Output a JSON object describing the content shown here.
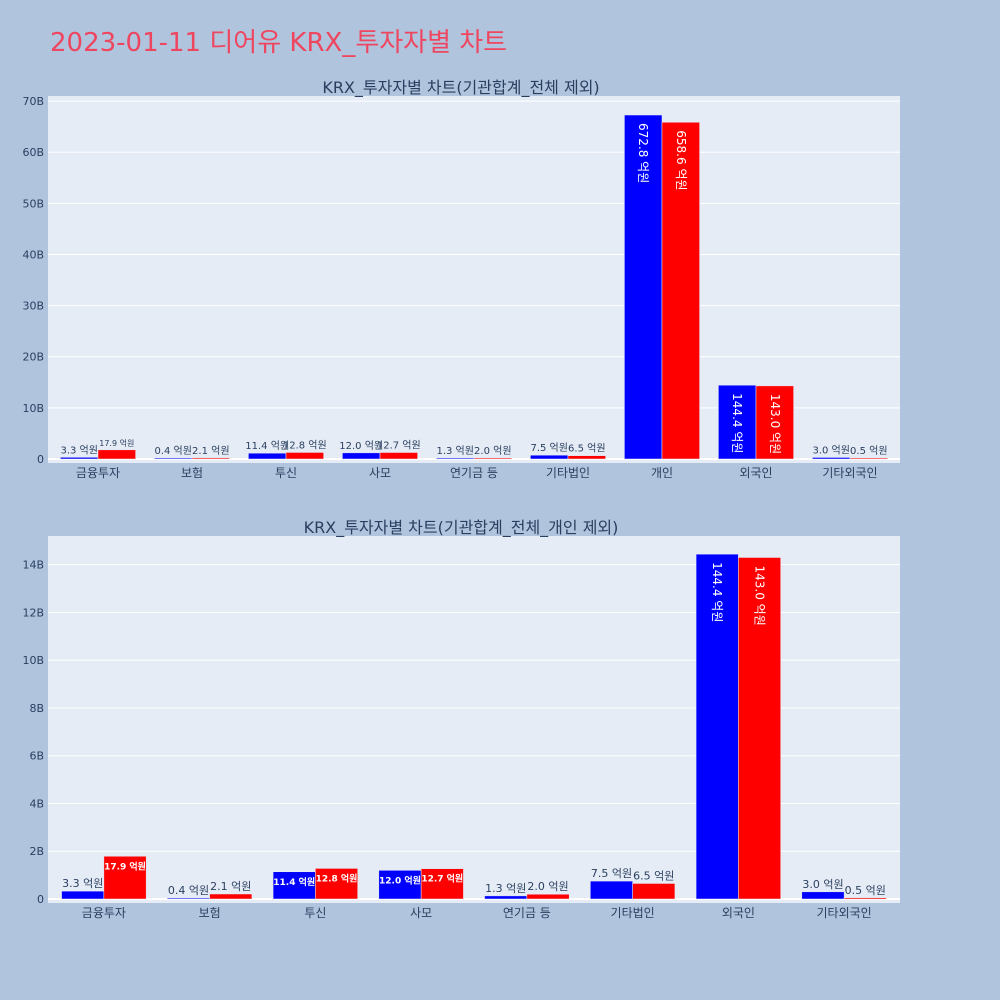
{
  "page": {
    "title": "2023-01-11 디어유 KRX_투자자별 차트"
  },
  "colors": {
    "sell": "#0000ff",
    "buy": "#ff0000",
    "plot_bg": "#e5ecf6",
    "page_bg": "#b0c4de"
  },
  "chart_data": [
    {
      "type": "bar",
      "title": "KRX_투자자별 차트(기관합계_전체 제외)",
      "categories": [
        "금융투자",
        "보험",
        "투신",
        "사모",
        "연기금 등",
        "기타법인",
        "개인",
        "외국인",
        "기타외국인"
      ],
      "series": [
        {
          "values": [
            0.33,
            0.04,
            1.14,
            1.2,
            0.13,
            0.75,
            67.28,
            14.44,
            0.3
          ],
          "labels": [
            "3.3 억원",
            "0.4 억원",
            "11.4 억원",
            "12.0 억원",
            "1.3 억원",
            "7.5 억원",
            "672.8 억원",
            "144.4 억원",
            "3.0 억원"
          ]
        },
        {
          "values": [
            1.79,
            0.21,
            1.28,
            1.27,
            0.2,
            0.65,
            65.86,
            14.3,
            0.05
          ],
          "labels": [
            "17.9 억원",
            "2.1 억원",
            "12.8 억원",
            "12.7 억원",
            "2.0 억원",
            "6.5 억원",
            "658.6 억원",
            "143.0 억원",
            "0.5 억원"
          ]
        }
      ],
      "ylim": [
        0,
        71
      ],
      "yticks": [
        0,
        10,
        20,
        30,
        40,
        50,
        60,
        70
      ],
      "ytick_labels": [
        "0",
        "10B",
        "20B",
        "30B",
        "40B",
        "50B",
        "60B",
        "70B"
      ],
      "grid": true
    },
    {
      "type": "bar",
      "title": "KRX_투자자별 차트(기관합계_전체_개인 제외)",
      "categories": [
        "금융투자",
        "보험",
        "투신",
        "사모",
        "연기금 등",
        "기타법인",
        "외국인",
        "기타외국인"
      ],
      "series": [
        {
          "values": [
            0.33,
            0.04,
            1.14,
            1.2,
            0.13,
            0.75,
            14.44,
            0.3
          ],
          "labels": [
            "3.3 억원",
            "0.4 억원",
            "11.4 억원",
            "12.0 억원",
            "1.3 억원",
            "7.5 억원",
            "144.4 억원",
            "3.0 억원"
          ]
        },
        {
          "values": [
            1.79,
            0.21,
            1.28,
            1.27,
            0.2,
            0.65,
            14.3,
            0.05
          ],
          "labels": [
            "17.9 억원",
            "2.1 억원",
            "12.8 억원",
            "12.7 억원",
            "2.0 억원",
            "6.5 억원",
            "143.0 억원",
            "0.5 억원"
          ]
        }
      ],
      "ylim": [
        0,
        15.2
      ],
      "yticks": [
        0,
        2,
        4,
        6,
        8,
        10,
        12,
        14
      ],
      "ytick_labels": [
        "0",
        "2B",
        "4B",
        "6B",
        "8B",
        "10B",
        "12B",
        "14B"
      ],
      "grid": true
    }
  ]
}
